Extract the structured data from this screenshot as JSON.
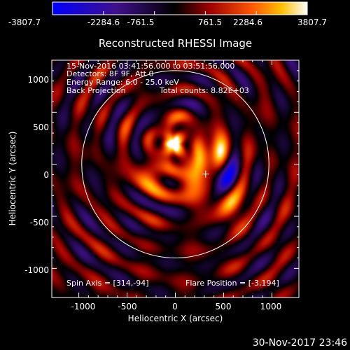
{
  "chart_data": {
    "type": "heatmap",
    "title": "Reconstructed RHESSI Image",
    "xlabel": "Heliocentric X (arcsec)",
    "ylabel": "Heliocentric Y (arcsec)",
    "xlim": [
      -1280,
      1280
    ],
    "ylim": [
      -1280,
      1000
    ],
    "x_ticks": [
      "-1000",
      "-500",
      "0",
      "500",
      "1000"
    ],
    "y_ticks": [
      "1000",
      "500",
      "0",
      "-500",
      "-1000"
    ],
    "colorbar": {
      "range": [
        -3807.7,
        3807.7
      ],
      "tick_labels": [
        "-3807.7",
        "-2284.6",
        "-761.5",
        "761.5",
        "2284.6",
        "3807.7"
      ]
    },
    "solar_limb_radius": 970,
    "sources": [
      {
        "x": 0,
        "y": 210,
        "value": 3700
      },
      {
        "x": 480,
        "y": -120,
        "value": -3807.7
      },
      {
        "x": 420,
        "y": 120,
        "value": 3200
      },
      {
        "x": 560,
        "y": -360,
        "value": 3000
      },
      {
        "x": 160,
        "y": -180,
        "value": 3000
      },
      {
        "x": -280,
        "y": -120,
        "value": 2300
      },
      {
        "x": 320,
        "y": -40,
        "value": 1800
      }
    ],
    "flare_position": [
      -3,
      194
    ],
    "spin_axis": [
      314,
      -94
    ],
    "annotations": [
      "15-Nov-2016 03:41:56.000 to 03:51:56.000",
      "Detectors: 8F 9F, Att 0",
      "Energy Range: 6.0 - 25.0 keV",
      "Back Projection",
      "Total counts: 8.82E+03",
      "Spin Axis = [314,-94]",
      "Flare Position = [-3,194]"
    ]
  },
  "footer": {
    "timestamp": "30-Nov-2017 23:46"
  }
}
